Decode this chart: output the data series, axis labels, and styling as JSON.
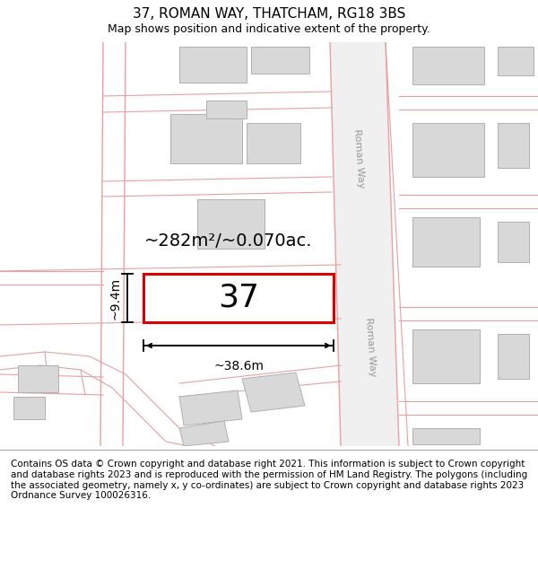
{
  "title": "37, ROMAN WAY, THATCHAM, RG18 3BS",
  "subtitle": "Map shows position and indicative extent of the property.",
  "footer": "Contains OS data © Crown copyright and database right 2021. This information is subject to Crown copyright and database rights 2023 and is reproduced with the permission of HM Land Registry. The polygons (including the associated geometry, namely x, y co-ordinates) are subject to Crown copyright and database rights 2023 Ordnance Survey 100026316.",
  "map_background": "#ffffff",
  "road_border_color": "#e8a0a0",
  "building_fill": "#d8d8d8",
  "building_edge": "#b0b0b0",
  "highlight_color": "#dd0000",
  "highlight_fill": "#ffffff",
  "plot_label": "37",
  "area_label": "~282m²/~0.070ac.",
  "width_label": "~38.6m",
  "height_label": "~9.4m",
  "roman_way_label": "Roman Way",
  "title_fontsize": 11,
  "subtitle_fontsize": 9,
  "footer_fontsize": 7.5
}
